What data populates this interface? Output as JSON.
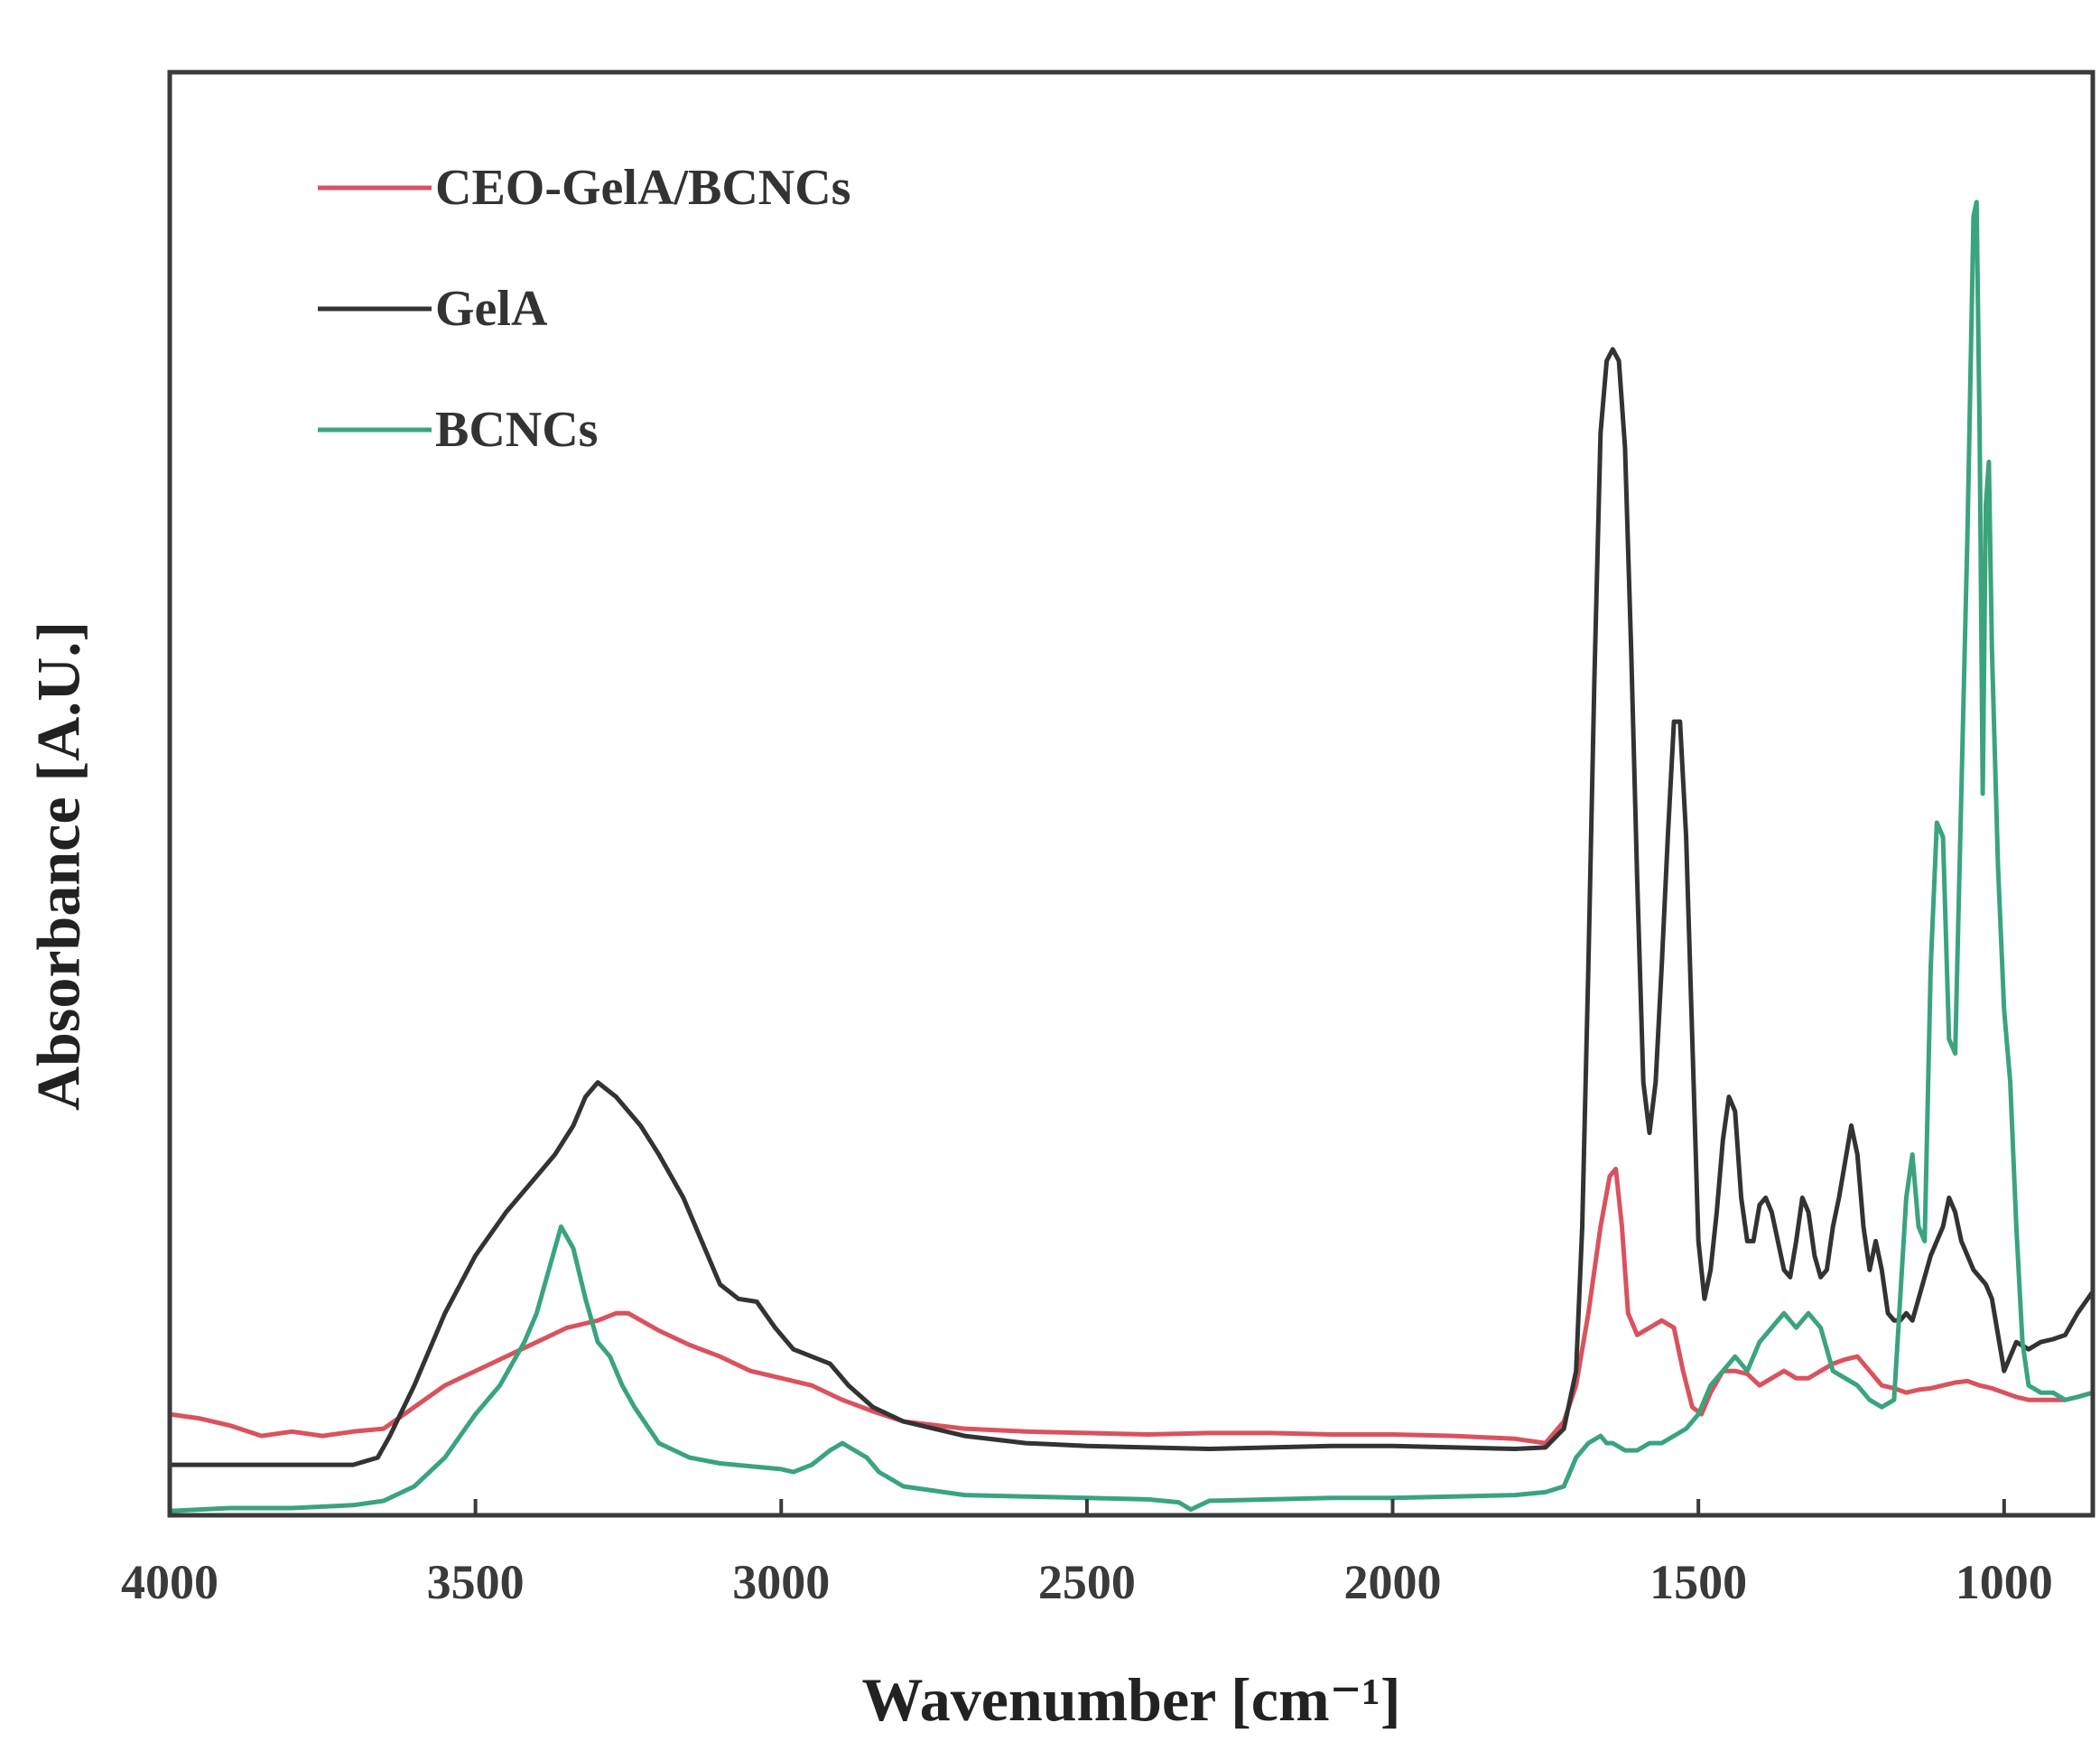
{
  "chart_data": {
    "type": "line",
    "title": "",
    "xlabel": "Wavenumber [cm⁻¹]",
    "ylabel": "Absorbance [A.U.]",
    "xlim": [
      4000,
      855
    ],
    "ylim": [
      0,
      1
    ],
    "x_reversed": true,
    "y_ticks_shown": false,
    "grid": false,
    "legend_position": "top-left",
    "x_ticks": [
      "4000",
      "3500",
      "3000",
      "2500",
      "2000",
      "1500",
      "1000"
    ],
    "x_tick_values": [
      4000,
      3500,
      3000,
      2500,
      2000,
      1500,
      1000
    ],
    "series": [
      {
        "name": "CEO-GelA/BCNCs",
        "color": "#d9525e",
        "x": [
          4000,
          3950,
          3900,
          3850,
          3800,
          3750,
          3700,
          3650,
          3600,
          3550,
          3500,
          3450,
          3400,
          3350,
          3300,
          3270,
          3250,
          3200,
          3150,
          3100,
          3050,
          3000,
          2950,
          2900,
          2850,
          2800,
          2700,
          2600,
          2500,
          2400,
          2300,
          2200,
          2100,
          2000,
          1900,
          1800,
          1750,
          1720,
          1700,
          1680,
          1660,
          1645,
          1635,
          1625,
          1615,
          1600,
          1580,
          1560,
          1540,
          1525,
          1510,
          1495,
          1480,
          1460,
          1440,
          1420,
          1400,
          1380,
          1360,
          1340,
          1320,
          1300,
          1280,
          1260,
          1240,
          1220,
          1200,
          1180,
          1160,
          1140,
          1120,
          1100,
          1080,
          1060,
          1040,
          1020,
          1000,
          980,
          960,
          940,
          920,
          900,
          880,
          855
        ],
        "y": [
          0.07,
          0.067,
          0.062,
          0.055,
          0.058,
          0.055,
          0.058,
          0.06,
          0.075,
          0.09,
          0.1,
          0.11,
          0.12,
          0.13,
          0.135,
          0.14,
          0.14,
          0.128,
          0.118,
          0.11,
          0.1,
          0.095,
          0.09,
          0.08,
          0.072,
          0.065,
          0.06,
          0.058,
          0.057,
          0.056,
          0.057,
          0.057,
          0.056,
          0.056,
          0.055,
          0.053,
          0.05,
          0.065,
          0.09,
          0.14,
          0.2,
          0.235,
          0.24,
          0.2,
          0.14,
          0.125,
          0.13,
          0.135,
          0.13,
          0.1,
          0.075,
          0.07,
          0.085,
          0.1,
          0.1,
          0.098,
          0.09,
          0.095,
          0.1,
          0.095,
          0.095,
          0.1,
          0.105,
          0.108,
          0.11,
          0.1,
          0.09,
          0.088,
          0.085,
          0.087,
          0.088,
          0.09,
          0.092,
          0.093,
          0.09,
          0.088,
          0.085,
          0.082,
          0.08,
          0.08,
          0.08,
          0.08,
          0.082,
          0.085
        ]
      },
      {
        "name": "GelA",
        "color": "#333333",
        "x": [
          4000,
          3900,
          3800,
          3700,
          3660,
          3640,
          3600,
          3550,
          3500,
          3450,
          3400,
          3370,
          3340,
          3320,
          3300,
          3270,
          3230,
          3200,
          3160,
          3130,
          3100,
          3070,
          3040,
          3010,
          2980,
          2950,
          2920,
          2890,
          2850,
          2800,
          2700,
          2600,
          2500,
          2400,
          2300,
          2200,
          2100,
          2000,
          1900,
          1800,
          1750,
          1720,
          1700,
          1690,
          1680,
          1670,
          1660,
          1650,
          1640,
          1630,
          1620,
          1610,
          1600,
          1590,
          1580,
          1570,
          1560,
          1550,
          1540,
          1530,
          1520,
          1510,
          1500,
          1490,
          1480,
          1470,
          1460,
          1450,
          1440,
          1430,
          1420,
          1410,
          1400,
          1390,
          1380,
          1370,
          1360,
          1350,
          1340,
          1330,
          1320,
          1310,
          1300,
          1290,
          1280,
          1270,
          1260,
          1250,
          1240,
          1230,
          1220,
          1210,
          1200,
          1190,
          1180,
          1170,
          1160,
          1150,
          1140,
          1120,
          1100,
          1090,
          1080,
          1070,
          1060,
          1050,
          1040,
          1030,
          1020,
          1000,
          980,
          960,
          940,
          920,
          900,
          880,
          855
        ],
        "y": [
          0.035,
          0.035,
          0.035,
          0.035,
          0.04,
          0.055,
          0.09,
          0.14,
          0.18,
          0.21,
          0.235,
          0.25,
          0.27,
          0.29,
          0.3,
          0.29,
          0.27,
          0.25,
          0.22,
          0.19,
          0.16,
          0.15,
          0.148,
          0.13,
          0.115,
          0.11,
          0.105,
          0.09,
          0.075,
          0.065,
          0.055,
          0.05,
          0.048,
          0.047,
          0.046,
          0.047,
          0.048,
          0.048,
          0.047,
          0.046,
          0.047,
          0.06,
          0.1,
          0.2,
          0.38,
          0.58,
          0.75,
          0.8,
          0.808,
          0.8,
          0.74,
          0.6,
          0.44,
          0.3,
          0.265,
          0.3,
          0.38,
          0.47,
          0.55,
          0.55,
          0.47,
          0.33,
          0.19,
          0.15,
          0.17,
          0.21,
          0.26,
          0.29,
          0.28,
          0.22,
          0.19,
          0.19,
          0.215,
          0.22,
          0.21,
          0.19,
          0.17,
          0.165,
          0.19,
          0.22,
          0.21,
          0.18,
          0.165,
          0.17,
          0.2,
          0.22,
          0.245,
          0.27,
          0.25,
          0.2,
          0.17,
          0.19,
          0.17,
          0.14,
          0.135,
          0.135,
          0.14,
          0.135,
          0.15,
          0.18,
          0.2,
          0.22,
          0.21,
          0.19,
          0.18,
          0.17,
          0.165,
          0.16,
          0.15,
          0.1,
          0.12,
          0.115,
          0.12,
          0.122,
          0.125,
          0.14,
          0.155
        ]
      },
      {
        "name": "BCNCs",
        "color": "#3aa47c",
        "x": [
          4000,
          3900,
          3800,
          3700,
          3650,
          3600,
          3550,
          3500,
          3460,
          3420,
          3400,
          3380,
          3360,
          3340,
          3320,
          3300,
          3280,
          3260,
          3240,
          3200,
          3150,
          3100,
          3050,
          3000,
          2980,
          2950,
          2920,
          2900,
          2880,
          2860,
          2840,
          2800,
          2700,
          2600,
          2500,
          2400,
          2350,
          2330,
          2300,
          2200,
          2100,
          2000,
          1900,
          1800,
          1750,
          1720,
          1700,
          1680,
          1660,
          1650,
          1640,
          1620,
          1600,
          1580,
          1560,
          1540,
          1520,
          1500,
          1480,
          1460,
          1440,
          1420,
          1400,
          1380,
          1360,
          1340,
          1320,
          1300,
          1280,
          1260,
          1240,
          1220,
          1200,
          1180,
          1160,
          1150,
          1140,
          1130,
          1120,
          1110,
          1100,
          1090,
          1080,
          1070,
          1060,
          1050,
          1045,
          1040,
          1035,
          1030,
          1025,
          1020,
          1010,
          1000,
          990,
          980,
          970,
          960,
          940,
          920,
          900,
          880,
          855
        ],
        "y": [
          0.003,
          0.005,
          0.005,
          0.007,
          0.01,
          0.02,
          0.04,
          0.07,
          0.09,
          0.12,
          0.14,
          0.17,
          0.2,
          0.185,
          0.15,
          0.12,
          0.11,
          0.09,
          0.075,
          0.05,
          0.04,
          0.036,
          0.034,
          0.032,
          0.03,
          0.035,
          0.045,
          0.05,
          0.045,
          0.04,
          0.03,
          0.02,
          0.014,
          0.013,
          0.012,
          0.011,
          0.009,
          0.004,
          0.01,
          0.011,
          0.012,
          0.012,
          0.013,
          0.014,
          0.016,
          0.02,
          0.04,
          0.05,
          0.055,
          0.05,
          0.05,
          0.045,
          0.045,
          0.05,
          0.05,
          0.055,
          0.06,
          0.07,
          0.09,
          0.1,
          0.11,
          0.1,
          0.12,
          0.13,
          0.14,
          0.13,
          0.14,
          0.13,
          0.1,
          0.095,
          0.09,
          0.08,
          0.075,
          0.08,
          0.22,
          0.25,
          0.2,
          0.19,
          0.38,
          0.48,
          0.47,
          0.33,
          0.32,
          0.5,
          0.68,
          0.9,
          0.91,
          0.75,
          0.5,
          0.7,
          0.73,
          0.6,
          0.45,
          0.35,
          0.3,
          0.2,
          0.12,
          0.09,
          0.085,
          0.085,
          0.08,
          0.082,
          0.085
        ]
      }
    ]
  }
}
